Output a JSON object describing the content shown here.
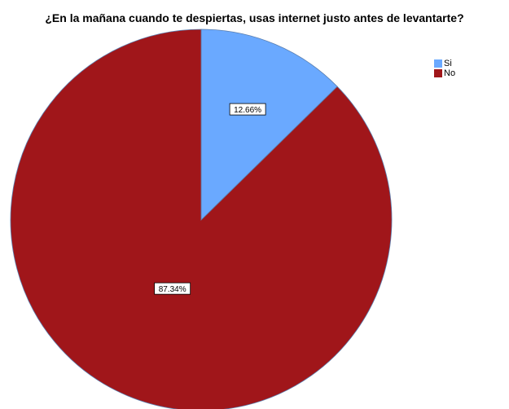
{
  "chart_data": {
    "type": "pie",
    "title": "¿En la mañana cuando te despiertas, usas internet justo antes de levantarte?",
    "categories": [
      "Si",
      "No"
    ],
    "values": [
      12.66,
      87.34
    ],
    "data_labels": [
      "12.66%",
      "87.34%"
    ],
    "colors": [
      "#6aa9ff",
      "#a0161a"
    ],
    "legend": {
      "placement": "top-right",
      "entries": [
        "Si",
        "No"
      ]
    }
  }
}
